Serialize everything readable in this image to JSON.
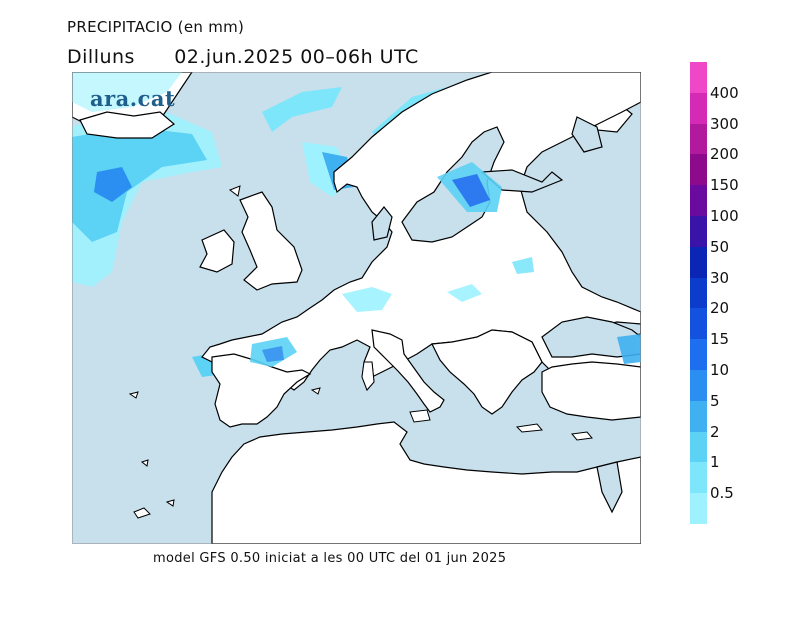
{
  "header": {
    "variable": "PRECIPITACIO (en mm)",
    "day": "Dilluns",
    "period": "02.jun.2025 00–06h UTC"
  },
  "logo": "ara.cat",
  "footer": "model GFS 0.50 iniciat a les 00 UTC del 01 jun 2025",
  "colors": {
    "sea": "#c8dfec",
    "land": "#ffffff",
    "coast": "#000000"
  },
  "legend": {
    "labels": [
      "0.5",
      "1",
      "2",
      "5",
      "10",
      "15",
      "20",
      "30",
      "50",
      "100",
      "150",
      "200",
      "300",
      "400"
    ],
    "colors": [
      "#9ef2ff",
      "#7ee6fb",
      "#5cd2f5",
      "#3fb0f0",
      "#2a8ff0",
      "#1d6ff0",
      "#1252de",
      "#0c3ccc",
      "#0b25b4",
      "#3a13a8",
      "#6a0a9e",
      "#8e0a8c",
      "#b21a9e",
      "#d42ab6",
      "#f046c8"
    ]
  }
}
